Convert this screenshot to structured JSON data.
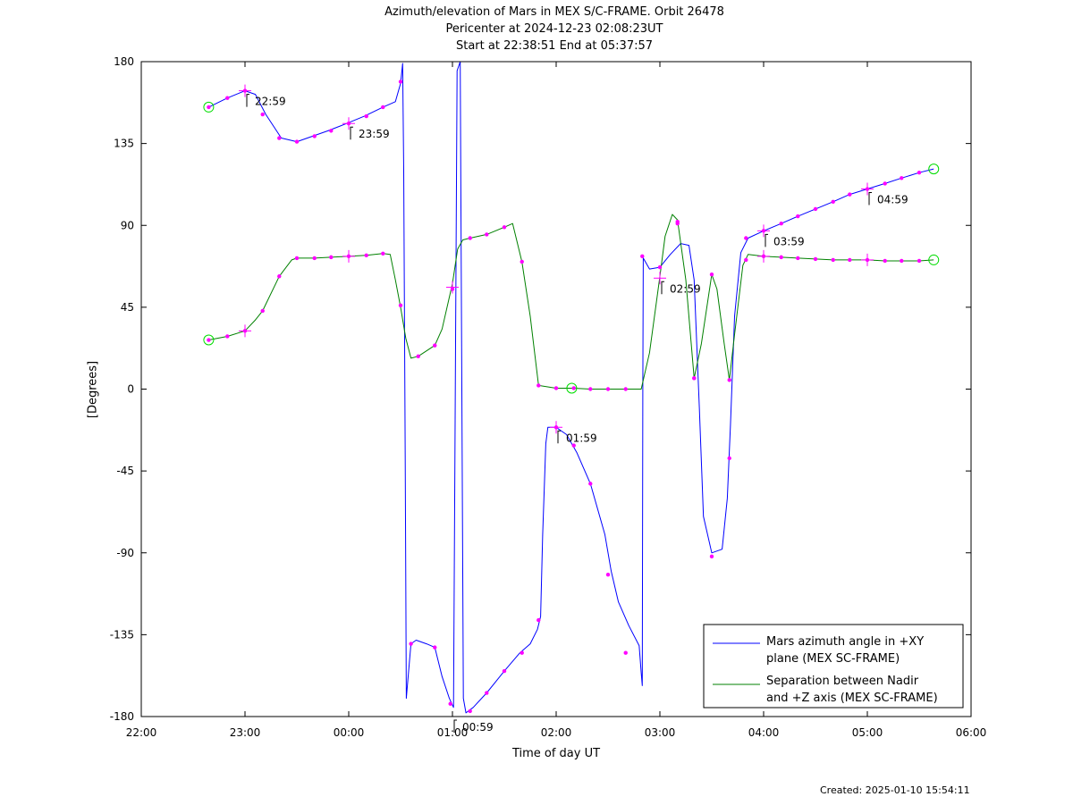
{
  "titles": [
    "Azimuth/elevation of Mars in MEX S/C-FRAME.  Orbit 26478",
    "Pericenter at 2024-12-23 02:08:23UT",
    "Start at 22:38:51 End at 05:37:57"
  ],
  "created": "Created: 2025-01-10 15:54:11",
  "chart_data": {
    "type": "line",
    "xlabel": "Time of day UT",
    "ylabel": "[Degrees]",
    "xlim": [
      -2,
      6
    ],
    "ylim": [
      -180,
      180
    ],
    "x_ticks": [
      {
        "v": -2,
        "label": "22:00"
      },
      {
        "v": -1,
        "label": "23:00"
      },
      {
        "v": 0,
        "label": "00:00"
      },
      {
        "v": 1,
        "label": "01:00"
      },
      {
        "v": 2,
        "label": "02:00"
      },
      {
        "v": 3,
        "label": "03:00"
      },
      {
        "v": 4,
        "label": "04:00"
      },
      {
        "v": 5,
        "label": "05:00"
      },
      {
        "v": 6,
        "label": "06:00"
      }
    ],
    "y_ticks": [
      {
        "v": 180,
        "label": "180"
      },
      {
        "v": 135,
        "label": "135"
      },
      {
        "v": 90,
        "label": "90"
      },
      {
        "v": 45,
        "label": "45"
      },
      {
        "v": 0,
        "label": "0"
      },
      {
        "v": -45,
        "label": "-45"
      },
      {
        "v": -90,
        "label": "-90"
      },
      {
        "v": -135,
        "label": "-135"
      },
      {
        "v": -180,
        "label": "-180"
      }
    ],
    "grid": false,
    "legend_position": "bottom-right",
    "series": [
      {
        "name": "Mars azimuth angle in +XY plane (MEX SC-FRAME)",
        "legend_lines": [
          "Mars azimuth angle in +XY",
          "plane (MEX SC-FRAME)"
        ],
        "color": "#0000ff",
        "points": [
          [
            -1.35,
            155
          ],
          [
            -1.17,
            160
          ],
          [
            -1.0,
            164
          ],
          [
            -0.9,
            162
          ],
          [
            -0.8,
            151
          ],
          [
            -0.65,
            138
          ],
          [
            -0.5,
            136
          ],
          [
            -0.35,
            139
          ],
          [
            -0.2,
            142
          ],
          [
            -0.02,
            146
          ],
          [
            0.15,
            150
          ],
          [
            0.33,
            155
          ],
          [
            0.45,
            158
          ],
          [
            0.5,
            168
          ],
          [
            0.52,
            179
          ],
          [
            0.53,
            120
          ],
          [
            0.545,
            -40
          ],
          [
            0.555,
            -170
          ],
          [
            0.6,
            -140
          ],
          [
            0.65,
            -138
          ],
          [
            0.75,
            -140
          ],
          [
            0.83,
            -142
          ],
          [
            0.9,
            -158
          ],
          [
            0.97,
            -170
          ],
          [
            1.01,
            -175
          ],
          [
            1.045,
            175
          ],
          [
            1.075,
            180
          ],
          [
            1.105,
            -170
          ],
          [
            1.13,
            -178
          ],
          [
            1.2,
            -175
          ],
          [
            1.33,
            -167
          ],
          [
            1.5,
            -155
          ],
          [
            1.65,
            -145
          ],
          [
            1.75,
            -140
          ],
          [
            1.82,
            -132
          ],
          [
            1.85,
            -125
          ],
          [
            1.87,
            -80
          ],
          [
            1.9,
            -30
          ],
          [
            1.92,
            -21
          ],
          [
            2.0,
            -21
          ],
          [
            2.1,
            -25
          ],
          [
            2.2,
            -35
          ],
          [
            2.33,
            -52
          ],
          [
            2.43,
            -72
          ],
          [
            2.47,
            -80
          ],
          [
            2.53,
            -100
          ],
          [
            2.6,
            -117
          ],
          [
            2.7,
            -130
          ],
          [
            2.8,
            -141
          ],
          [
            2.82,
            -156
          ],
          [
            2.83,
            -163
          ],
          [
            2.835,
            0
          ],
          [
            2.84,
            72
          ],
          [
            2.9,
            66
          ],
          [
            3.0,
            67
          ],
          [
            3.1,
            74
          ],
          [
            3.2,
            80
          ],
          [
            3.28,
            79
          ],
          [
            3.33,
            60
          ],
          [
            3.38,
            -10
          ],
          [
            3.42,
            -70
          ],
          [
            3.5,
            -90
          ],
          [
            3.6,
            -88
          ],
          [
            3.65,
            -60
          ],
          [
            3.68,
            -20
          ],
          [
            3.72,
            40
          ],
          [
            3.78,
            75
          ],
          [
            3.85,
            83
          ],
          [
            4.0,
            87
          ],
          [
            4.17,
            91
          ],
          [
            4.33,
            95
          ],
          [
            4.5,
            99
          ],
          [
            4.67,
            103
          ],
          [
            4.83,
            107
          ],
          [
            5.0,
            110
          ],
          [
            5.17,
            113
          ],
          [
            5.33,
            116
          ],
          [
            5.5,
            119
          ],
          [
            5.64,
            121
          ]
        ],
        "markers": [
          [
            -1.35,
            155
          ],
          [
            -1.17,
            160
          ],
          [
            -1.0,
            164
          ],
          [
            -0.83,
            151
          ],
          [
            -0.67,
            138
          ],
          [
            -0.5,
            136
          ],
          [
            -0.33,
            139
          ],
          [
            -0.17,
            142
          ],
          [
            0.0,
            146
          ],
          [
            0.17,
            150
          ],
          [
            0.33,
            155
          ],
          [
            0.5,
            169
          ],
          [
            0.6,
            -140
          ],
          [
            0.83,
            -142
          ],
          [
            0.98,
            -173
          ],
          [
            1.17,
            -177
          ],
          [
            1.33,
            -167
          ],
          [
            1.5,
            -155
          ],
          [
            1.67,
            -145
          ],
          [
            1.83,
            -127
          ],
          [
            2.0,
            -21
          ],
          [
            2.17,
            -31
          ],
          [
            2.33,
            -52
          ],
          [
            2.5,
            -102
          ],
          [
            2.67,
            -145
          ],
          [
            2.83,
            73
          ],
          [
            3.0,
            67
          ],
          [
            3.17,
            91
          ],
          [
            3.33,
            6
          ],
          [
            3.5,
            -92
          ],
          [
            3.67,
            -38
          ],
          [
            3.83,
            83
          ],
          [
            4.0,
            87
          ],
          [
            4.17,
            91
          ],
          [
            4.33,
            95
          ],
          [
            4.5,
            99
          ],
          [
            4.67,
            103
          ],
          [
            4.83,
            107
          ],
          [
            5.0,
            110
          ],
          [
            5.17,
            113
          ],
          [
            5.33,
            116
          ],
          [
            5.5,
            119
          ]
        ],
        "hour_marks": [
          [
            -1.0,
            164
          ],
          [
            0.0,
            146
          ],
          [
            1.0,
            56
          ],
          [
            2.0,
            -21
          ],
          [
            3.0,
            61
          ],
          [
            4.0,
            87
          ],
          [
            5.0,
            110
          ]
        ]
      },
      {
        "name": "Separation between Nadir and +Z axis (MEX SC-FRAME)",
        "legend_lines": [
          "Separation between Nadir",
          "and +Z axis (MEX SC-FRAME)"
        ],
        "color": "#008000",
        "points": [
          [
            -1.35,
            27
          ],
          [
            -1.17,
            29
          ],
          [
            -1.0,
            32
          ],
          [
            -0.9,
            38
          ],
          [
            -0.83,
            43
          ],
          [
            -0.67,
            62
          ],
          [
            -0.55,
            71
          ],
          [
            -0.5,
            72
          ],
          [
            -0.33,
            72
          ],
          [
            -0.17,
            72.5
          ],
          [
            0.0,
            73
          ],
          [
            0.17,
            73.5
          ],
          [
            0.33,
            74.5
          ],
          [
            0.4,
            74
          ],
          [
            0.45,
            60
          ],
          [
            0.5,
            45
          ],
          [
            0.55,
            28
          ],
          [
            0.6,
            17
          ],
          [
            0.67,
            18
          ],
          [
            0.83,
            24
          ],
          [
            0.9,
            33
          ],
          [
            1.0,
            58
          ],
          [
            1.05,
            77
          ],
          [
            1.1,
            82
          ],
          [
            1.17,
            83
          ],
          [
            1.33,
            85
          ],
          [
            1.5,
            89
          ],
          [
            1.58,
            91
          ],
          [
            1.67,
            70
          ],
          [
            1.75,
            40
          ],
          [
            1.83,
            2
          ],
          [
            2.0,
            0.5
          ],
          [
            2.17,
            0.5
          ],
          [
            2.33,
            0
          ],
          [
            2.5,
            0
          ],
          [
            2.67,
            0
          ],
          [
            2.82,
            0
          ],
          [
            2.9,
            20
          ],
          [
            3.0,
            62
          ],
          [
            3.05,
            84
          ],
          [
            3.12,
            96
          ],
          [
            3.17,
            93
          ],
          [
            3.25,
            60
          ],
          [
            3.33,
            6
          ],
          [
            3.4,
            25
          ],
          [
            3.5,
            63
          ],
          [
            3.55,
            55
          ],
          [
            3.62,
            25
          ],
          [
            3.67,
            5
          ],
          [
            3.72,
            30
          ],
          [
            3.8,
            68
          ],
          [
            3.85,
            74
          ],
          [
            4.0,
            73
          ],
          [
            4.17,
            72.5
          ],
          [
            4.33,
            72
          ],
          [
            4.5,
            71.5
          ],
          [
            4.67,
            71
          ],
          [
            4.83,
            71
          ],
          [
            5.0,
            71
          ],
          [
            5.17,
            70.5
          ],
          [
            5.33,
            70.5
          ],
          [
            5.5,
            70.5
          ],
          [
            5.64,
            71
          ]
        ],
        "markers": [
          [
            -1.35,
            27
          ],
          [
            -1.17,
            29
          ],
          [
            -1.0,
            32
          ],
          [
            -0.83,
            43
          ],
          [
            -0.67,
            62
          ],
          [
            -0.5,
            72
          ],
          [
            -0.33,
            72
          ],
          [
            -0.17,
            72.5
          ],
          [
            0.0,
            73
          ],
          [
            0.17,
            73.5
          ],
          [
            0.33,
            74.5
          ],
          [
            0.5,
            46
          ],
          [
            0.67,
            18
          ],
          [
            0.83,
            24
          ],
          [
            1.0,
            55
          ],
          [
            1.17,
            83
          ],
          [
            1.33,
            85
          ],
          [
            1.5,
            89
          ],
          [
            1.67,
            70
          ],
          [
            1.83,
            2
          ],
          [
            2.0,
            0.5
          ],
          [
            2.17,
            0.5
          ],
          [
            2.33,
            0
          ],
          [
            2.5,
            0
          ],
          [
            2.67,
            0
          ],
          [
            3.17,
            92
          ],
          [
            3.33,
            6
          ],
          [
            3.5,
            63
          ],
          [
            3.67,
            5
          ],
          [
            3.83,
            71
          ],
          [
            4.0,
            73
          ],
          [
            4.17,
            72.5
          ],
          [
            4.33,
            72
          ],
          [
            4.5,
            71.5
          ],
          [
            4.67,
            71
          ],
          [
            4.83,
            71
          ],
          [
            5.0,
            71
          ],
          [
            5.17,
            70.5
          ],
          [
            5.33,
            70.5
          ],
          [
            5.5,
            70.5
          ]
        ],
        "hour_marks": [
          [
            -1.0,
            32
          ],
          [
            0.0,
            73
          ],
          [
            4.0,
            73
          ],
          [
            5.0,
            71
          ]
        ]
      }
    ],
    "endpoint_circles": [
      [
        -1.35,
        155
      ],
      [
        5.64,
        121
      ],
      [
        -1.35,
        27
      ],
      [
        5.64,
        71
      ],
      [
        2.15,
        0.5
      ]
    ],
    "annotations": [
      {
        "x": -1.0,
        "y": 164,
        "label": "22:59"
      },
      {
        "x": 0.0,
        "y": 146,
        "label": "23:59"
      },
      {
        "x": 1.0,
        "y": -180,
        "label": "00:59"
      },
      {
        "x": 2.0,
        "y": -21,
        "label": "01:59"
      },
      {
        "x": 3.0,
        "y": 61,
        "label": "02:59"
      },
      {
        "x": 4.0,
        "y": 87,
        "label": "03:59"
      },
      {
        "x": 5.0,
        "y": 110,
        "label": "04:59"
      }
    ],
    "marker_color": "#ff00ff",
    "circle_color": "#00dd00"
  }
}
